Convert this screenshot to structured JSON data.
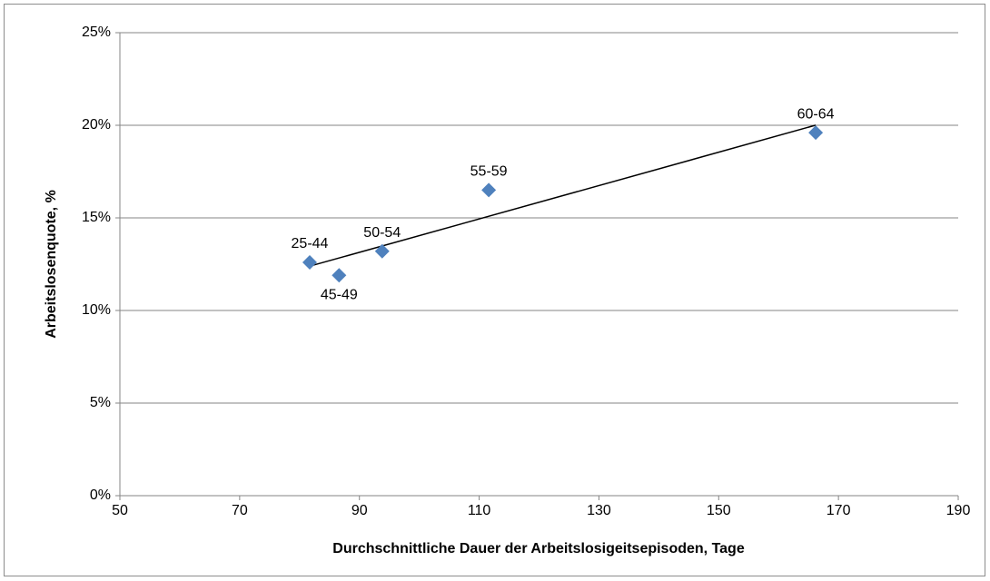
{
  "chart_data": {
    "type": "scatter",
    "x_label": "Durchschnittliche Dauer der Arbeitslosigeitsepisoden, Tage",
    "y_label": "Arbeitslosenquote, %",
    "series": [
      {
        "color": "#4f81bd",
        "x": [
          81.7,
          86.6,
          93.8,
          111.6,
          166.2
        ],
        "values": [
          12.6,
          11.9,
          13.2,
          16.5,
          19.6
        ],
        "labels": [
          "25-44",
          "45-49",
          "50-54",
          "55-59",
          "60-64"
        ],
        "label_positions": [
          "above",
          "below",
          "above",
          "above",
          "above"
        ]
      }
    ],
    "trendline": true,
    "trendline_color": "#000000",
    "xlim": [
      50,
      190
    ],
    "xticks": [
      50,
      70,
      90,
      110,
      130,
      150,
      170,
      190
    ],
    "ylim": [
      0,
      25
    ],
    "yticks": [
      {
        "value": 0,
        "label": "0%"
      },
      {
        "value": 5,
        "label": "5%"
      },
      {
        "value": 10,
        "label": "10%"
      },
      {
        "value": 15,
        "label": "15%"
      },
      {
        "value": 20,
        "label": "20%"
      },
      {
        "value": 25,
        "label": "25%"
      }
    ],
    "grid": true
  }
}
